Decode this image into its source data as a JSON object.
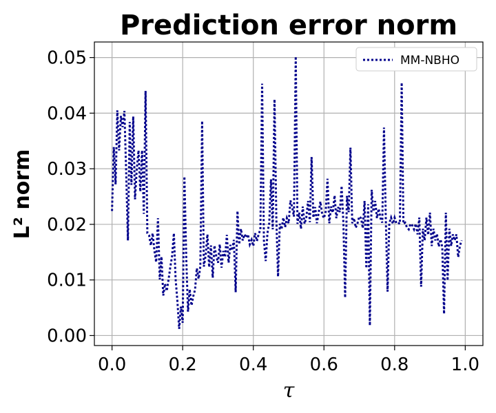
{
  "chart_data": {
    "type": "line",
    "title": "Prediction error norm",
    "xlabel": "τ",
    "ylabel": "L² norm",
    "xlim": [
      -0.05,
      1.05
    ],
    "ylim": [
      -0.0018,
      0.0528
    ],
    "x_ticks": [
      0.0,
      0.2,
      0.4,
      0.6,
      0.8,
      1.0
    ],
    "x_tick_labels": [
      "0.0",
      "0.2",
      "0.4",
      "0.6",
      "0.8",
      "1.0"
    ],
    "y_ticks": [
      0.0,
      0.01,
      0.02,
      0.03,
      0.04,
      0.05
    ],
    "y_tick_labels": [
      "0.00",
      "0.01",
      "0.02",
      "0.03",
      "0.04",
      "0.05"
    ],
    "grid": true,
    "legend_position": "top-right",
    "series": [
      {
        "name": "MM-NBHO",
        "color": "#00008b",
        "line_style": "dotted",
        "x": [
          0.0,
          0.005,
          0.01,
          0.015,
          0.02,
          0.025,
          0.03,
          0.035,
          0.04,
          0.045,
          0.05,
          0.055,
          0.06,
          0.065,
          0.07,
          0.075,
          0.08,
          0.085,
          0.09,
          0.095,
          0.1,
          0.105,
          0.11,
          0.115,
          0.12,
          0.125,
          0.13,
          0.135,
          0.14,
          0.145,
          0.15,
          0.155,
          0.16,
          0.165,
          0.17,
          0.175,
          0.18,
          0.185,
          0.19,
          0.195,
          0.2,
          0.205,
          0.21,
          0.215,
          0.22,
          0.225,
          0.23,
          0.235,
          0.24,
          0.245,
          0.25,
          0.255,
          0.26,
          0.265,
          0.27,
          0.275,
          0.28,
          0.285,
          0.29,
          0.295,
          0.3,
          0.305,
          0.31,
          0.315,
          0.32,
          0.325,
          0.33,
          0.335,
          0.34,
          0.345,
          0.35,
          0.355,
          0.36,
          0.365,
          0.37,
          0.375,
          0.38,
          0.385,
          0.39,
          0.395,
          0.4,
          0.405,
          0.41,
          0.415,
          0.42,
          0.425,
          0.43,
          0.435,
          0.44,
          0.445,
          0.45,
          0.455,
          0.46,
          0.465,
          0.47,
          0.475,
          0.48,
          0.485,
          0.49,
          0.495,
          0.5,
          0.505,
          0.51,
          0.515,
          0.52,
          0.525,
          0.53,
          0.535,
          0.54,
          0.545,
          0.55,
          0.555,
          0.56,
          0.565,
          0.57,
          0.575,
          0.58,
          0.585,
          0.59,
          0.595,
          0.6,
          0.605,
          0.61,
          0.615,
          0.62,
          0.625,
          0.63,
          0.635,
          0.64,
          0.645,
          0.65,
          0.655,
          0.66,
          0.665,
          0.67,
          0.675,
          0.68,
          0.685,
          0.69,
          0.695,
          0.7,
          0.705,
          0.71,
          0.715,
          0.72,
          0.725,
          0.73,
          0.735,
          0.74,
          0.745,
          0.75,
          0.755,
          0.76,
          0.765,
          0.77,
          0.775,
          0.78,
          0.785,
          0.79,
          0.795,
          0.8,
          0.805,
          0.81,
          0.815,
          0.82,
          0.825,
          0.83,
          0.835,
          0.84,
          0.845,
          0.85,
          0.855,
          0.86,
          0.865,
          0.87,
          0.875,
          0.88,
          0.885,
          0.89,
          0.895,
          0.9,
          0.905,
          0.91,
          0.915,
          0.92,
          0.925,
          0.93,
          0.935,
          0.94,
          0.945,
          0.95,
          0.955,
          0.96,
          0.965,
          0.97,
          0.975,
          0.98,
          0.985,
          0.99
        ],
        "y": [
          0.0224,
          0.0339,
          0.0272,
          0.0405,
          0.0333,
          0.0395,
          0.0375,
          0.0404,
          0.0296,
          0.0171,
          0.0384,
          0.0271,
          0.0394,
          0.0245,
          0.0299,
          0.0333,
          0.0259,
          0.0333,
          0.0219,
          0.044,
          0.0184,
          0.018,
          0.0162,
          0.0184,
          0.0152,
          0.0132,
          0.0211,
          0.0101,
          0.0142,
          0.0072,
          0.0093,
          0.008,
          0.0101,
          0.0123,
          0.0143,
          0.0184,
          0.0102,
          0.0062,
          0.0012,
          0.0052,
          0.0023,
          0.0286,
          0.0142,
          0.0043,
          0.0083,
          0.0054,
          0.0071,
          0.0082,
          0.0121,
          0.0102,
          0.0124,
          0.0386,
          0.0124,
          0.0144,
          0.0182,
          0.0123,
          0.0162,
          0.0104,
          0.0162,
          0.0143,
          0.0131,
          0.0164,
          0.0122,
          0.0152,
          0.0141,
          0.0181,
          0.0131,
          0.0163,
          0.0153,
          0.0172,
          0.0078,
          0.0224,
          0.0164,
          0.0192,
          0.0171,
          0.0182,
          0.0176,
          0.0182,
          0.0164,
          0.0172,
          0.0161,
          0.0184,
          0.017,
          0.0182,
          0.0191,
          0.0453,
          0.0171,
          0.0134,
          0.0184,
          0.0202,
          0.0281,
          0.0191,
          0.0425,
          0.0212,
          0.0106,
          0.0201,
          0.0191,
          0.0212,
          0.0195,
          0.0211,
          0.0202,
          0.0243,
          0.0231,
          0.0214,
          0.0502,
          0.0201,
          0.0221,
          0.0192,
          0.0232,
          0.0201,
          0.0212,
          0.0242,
          0.0204,
          0.0321,
          0.0212,
          0.0231,
          0.0202,
          0.0221,
          0.0241,
          0.0218,
          0.0211,
          0.0223,
          0.0282,
          0.0202,
          0.0232,
          0.0221,
          0.0252,
          0.0211,
          0.0231,
          0.0222,
          0.0269,
          0.0202,
          0.0068,
          0.0251,
          0.0222,
          0.0338,
          0.0202,
          0.0211,
          0.0194,
          0.0202,
          0.0214,
          0.0211,
          0.0193,
          0.0242,
          0.0121,
          0.0236,
          0.0018,
          0.0262,
          0.0223,
          0.0242,
          0.0211,
          0.0228,
          0.0211,
          0.0203,
          0.0374,
          0.0212,
          0.0079,
          0.0202,
          0.0212,
          0.0201,
          0.0212,
          0.0202,
          0.0203,
          0.0201,
          0.0455,
          0.0201,
          0.0203,
          0.0194,
          0.0191,
          0.0201,
          0.0198,
          0.0191,
          0.0201,
          0.0182,
          0.0212,
          0.0088,
          0.0192,
          0.0171,
          0.0212,
          0.0181,
          0.0221,
          0.0161,
          0.0192,
          0.0171,
          0.0183,
          0.016,
          0.0173,
          0.0159,
          0.0039,
          0.0221,
          0.0099,
          0.0192,
          0.0161,
          0.0182,
          0.0171,
          0.0182,
          0.0141,
          0.0162,
          0.0171
        ]
      }
    ]
  }
}
